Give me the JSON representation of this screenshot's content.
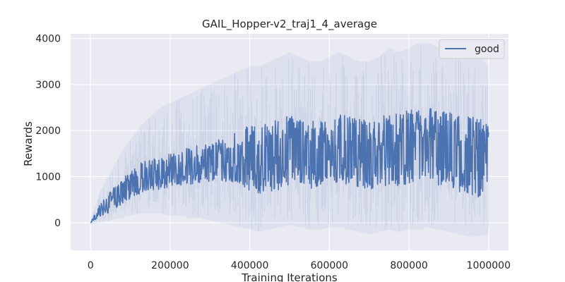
{
  "chart_data": {
    "type": "line",
    "title": "GAIL_Hopper-v2_traj1_4_average",
    "xlabel": "Training Iterations",
    "ylabel": "Rewards",
    "xlim": [
      -50000,
      1050000
    ],
    "ylim": [
      -600,
      4100
    ],
    "xticks": [
      0,
      200000,
      400000,
      600000,
      800000,
      1000000
    ],
    "xtick_labels": [
      "0",
      "200000",
      "400000",
      "600000",
      "800000",
      "1000000"
    ],
    "yticks": [
      0,
      1000,
      2000,
      3000,
      4000
    ],
    "ytick_labels": [
      "0",
      "1000",
      "2000",
      "3000",
      "4000"
    ],
    "grid": true,
    "legend_position": "top-right",
    "series": [
      {
        "name": "good",
        "color": "#4c72b0",
        "x": [
          0,
          25000,
          50000,
          75000,
          100000,
          125000,
          150000,
          175000,
          200000,
          225000,
          250000,
          275000,
          300000,
          325000,
          350000,
          375000,
          400000,
          425000,
          450000,
          475000,
          500000,
          525000,
          550000,
          575000,
          600000,
          625000,
          650000,
          675000,
          700000,
          725000,
          750000,
          775000,
          800000,
          825000,
          850000,
          875000,
          900000,
          925000,
          950000,
          975000,
          1000000
        ],
        "mean": [
          0,
          250,
          420,
          620,
          780,
          880,
          930,
          980,
          1020,
          1080,
          1120,
          1150,
          1200,
          1260,
          1300,
          1320,
          1280,
          1250,
          1300,
          1380,
          1500,
          1520,
          1480,
          1450,
          1500,
          1550,
          1520,
          1480,
          1420,
          1500,
          1560,
          1520,
          1600,
          1650,
          1700,
          1600,
          1550,
          1520,
          1450,
          1400,
          1500
        ],
        "low": [
          0,
          120,
          220,
          380,
          520,
          620,
          680,
          720,
          760,
          800,
          830,
          850,
          880,
          900,
          850,
          820,
          700,
          620,
          650,
          720,
          800,
          820,
          750,
          720,
          780,
          820,
          800,
          760,
          700,
          750,
          820,
          780,
          850,
          880,
          900,
          800,
          700,
          650,
          600,
          550,
          700
        ],
        "high": [
          20,
          420,
          680,
          950,
          1150,
          1300,
          1400,
          1450,
          1500,
          1550,
          1650,
          1700,
          1750,
          1850,
          1950,
          2050,
          2100,
          2150,
          2200,
          2300,
          2350,
          2300,
          2250,
          2200,
          2300,
          2350,
          2300,
          2250,
          2200,
          2300,
          2400,
          2350,
          2450,
          2500,
          2550,
          2450,
          2400,
          2450,
          2350,
          2300,
          2100
        ],
        "band_low": [
          -50,
          0,
          50,
          100,
          150,
          200,
          200,
          200,
          150,
          150,
          100,
          100,
          50,
          0,
          -50,
          -100,
          -150,
          -200,
          -150,
          -100,
          -50,
          -100,
          -150,
          -150,
          -100,
          -100,
          -150,
          -200,
          -250,
          -200,
          -150,
          -200,
          -150,
          -150,
          -100,
          -150,
          -200,
          -250,
          -300,
          -300,
          -250
        ],
        "band_high": [
          50,
          700,
          1100,
          1500,
          1800,
          2100,
          2300,
          2500,
          2600,
          2700,
          2800,
          2900,
          3000,
          3100,
          3200,
          3300,
          3400,
          3400,
          3500,
          3600,
          3700,
          3600,
          3500,
          3500,
          3600,
          3700,
          3600,
          3500,
          3500,
          3600,
          3800,
          3700,
          3800,
          3900,
          3900,
          3800,
          3700,
          3800,
          3700,
          3600,
          3400
        ]
      }
    ]
  }
}
